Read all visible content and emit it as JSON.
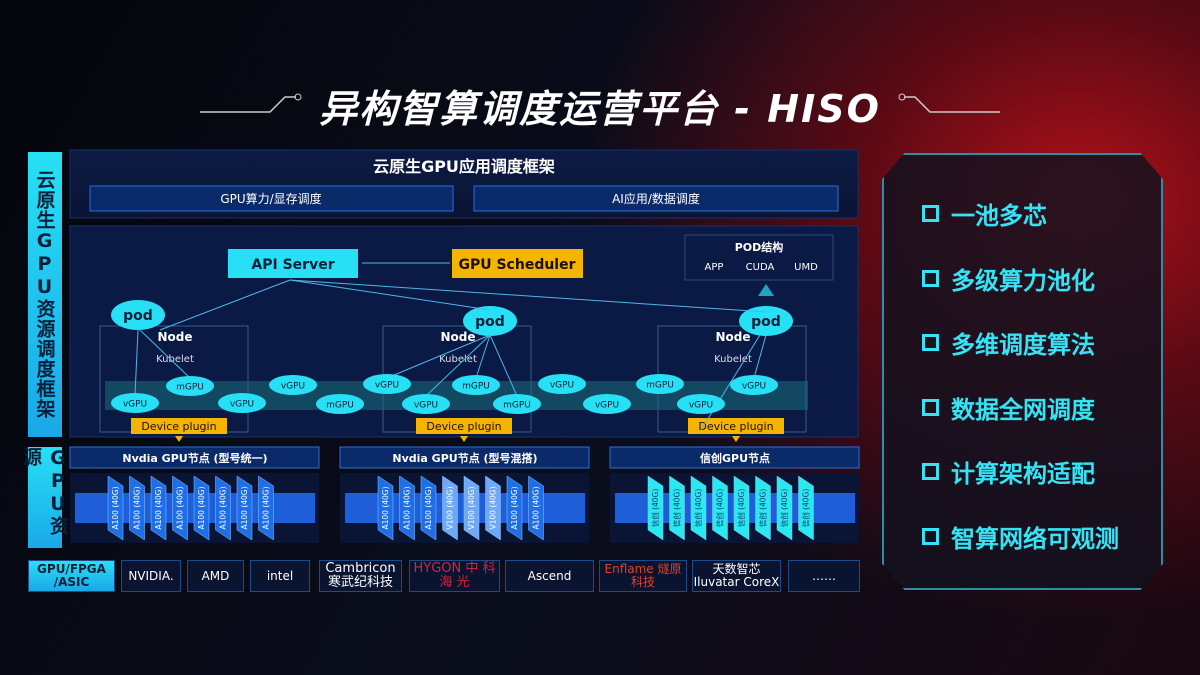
{
  "title": "异构智算调度运营平台 - HISO",
  "side_labels": {
    "framework": "云原生GPU资源调度框架",
    "resources": "GPU资源"
  },
  "top": {
    "title": "云原生GPU应用调度框架",
    "left": "GPU算力/显存调度",
    "right": "AI应用/数据调度"
  },
  "diagram": {
    "api_server": "API Server",
    "gpu_scheduler": "GPU Scheduler",
    "pod_structure": {
      "title": "POD结构",
      "items": [
        "APP",
        "CUDA",
        "UMD"
      ]
    },
    "pod": "pod",
    "node": "Node",
    "kubelet": "Kubelet",
    "device_plugin": "Device plugin",
    "gpus": [
      "vGPU",
      "mGPU",
      "vGPU",
      "vGPU",
      "mGPU",
      "vGPU",
      "vGPU",
      "mGPU",
      "mGPU",
      "vGPU",
      "vGPU",
      "mGPU",
      "vGPU",
      "vGPU"
    ]
  },
  "gpu_nodes": [
    {
      "title": "Nvdia GPU节点 (型号统一)",
      "chips": [
        "A100 (40G)",
        "A100 (40G)",
        "A100 (40G)",
        "A100 (40G)",
        "A100 (40G)",
        "A100 (40G)",
        "A100 (40G)",
        "A100 (40G)"
      ]
    },
    {
      "title": "Nvdia GPU节点 (型号混搭)",
      "chips": [
        "A100 (40G)",
        "A100 (40G)",
        "A100 (40G)",
        "V100 (40G)",
        "V100 (40G)",
        "V100 (40G)",
        "A100 (40G)",
        "A100 (40G)"
      ]
    },
    {
      "title": "信创GPU节点",
      "chips": [
        "信创 (40G)",
        "信创 (40G)",
        "信创 (40G)",
        "信创 (40G)",
        "信创 (40G)",
        "信创 (40G)",
        "信创 (40G)",
        "信创 (40G)"
      ]
    }
  ],
  "vendors": {
    "label": "GPU/FPGA /ASIC",
    "items": [
      "NVIDIA.",
      "AMD",
      "intel",
      "Cambricon 寒武纪科技",
      "HYGON 中 科 海 光",
      "Ascend",
      "Enflame 燧原科技",
      "天数智芯 Iluvatar CoreX",
      "……"
    ]
  },
  "features": [
    "一池多芯",
    "多级算力池化",
    "多维调度算法",
    "数据全网调度",
    "计算架构适配",
    "智算网络可观测"
  ],
  "colors": {
    "cyan": "#27e0f5",
    "orange": "#f5b400",
    "blue": "#1e6ee8",
    "red": "#b0101a"
  }
}
